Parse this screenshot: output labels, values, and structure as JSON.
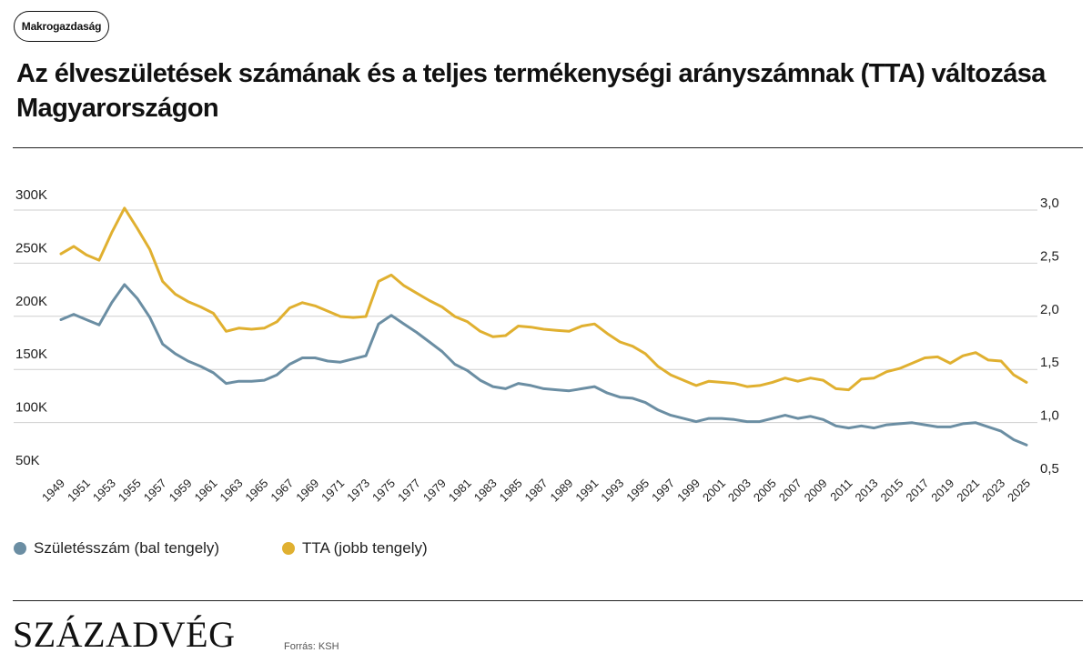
{
  "tag": "Makrogazdaság",
  "title": "Az élveszületések számának és a teljes termékenységi arányszámnak (TTA) változása Magyarországon",
  "brand": "SZÁZADVÉG",
  "source": "Forrás: KSH",
  "colors": {
    "births": "#6b8ea3",
    "tfr": "#e0b030",
    "grid": "#cfcfcf",
    "text": "#222222"
  },
  "chart_data": {
    "type": "line",
    "grid": true,
    "legend_position": "bottom-left",
    "left_axis": {
      "ylim": [
        50000,
        300000
      ],
      "ticks": [
        50000,
        100000,
        150000,
        200000,
        250000,
        300000
      ],
      "tick_labels": [
        "50K",
        "100K",
        "150K",
        "200K",
        "250K",
        "300K"
      ]
    },
    "right_axis": {
      "ylim": [
        0.5,
        3.0
      ],
      "ticks": [
        0.5,
        1.0,
        1.5,
        2.0,
        2.5,
        3.0
      ],
      "tick_labels": [
        "0,5",
        "1,0",
        "1,5",
        "2,0",
        "2,5",
        "3,0"
      ]
    },
    "x_tick_labels": [
      "1949",
      "1951",
      "1953",
      "1955",
      "1957",
      "1959",
      "1961",
      "1963",
      "1965",
      "1967",
      "1969",
      "1971",
      "1973",
      "1975",
      "1977",
      "1979",
      "1981",
      "1983",
      "1985",
      "1987",
      "1989",
      "1991",
      "1993",
      "1995",
      "1997",
      "1999",
      "2001",
      "2003",
      "2005",
      "2007",
      "2009",
      "2011",
      "2013",
      "2015",
      "2017",
      "2019",
      "2021",
      "2023",
      "2025"
    ],
    "x": [
      1949,
      1950,
      1951,
      1952,
      1953,
      1954,
      1955,
      1956,
      1957,
      1958,
      1959,
      1960,
      1961,
      1962,
      1963,
      1964,
      1965,
      1966,
      1967,
      1968,
      1969,
      1970,
      1971,
      1972,
      1973,
      1974,
      1975,
      1976,
      1977,
      1978,
      1979,
      1980,
      1981,
      1982,
      1983,
      1984,
      1985,
      1986,
      1987,
      1988,
      1989,
      1990,
      1991,
      1992,
      1993,
      1994,
      1995,
      1996,
      1997,
      1998,
      1999,
      2000,
      2001,
      2002,
      2003,
      2004,
      2005,
      2006,
      2007,
      2008,
      2009,
      2010,
      2011,
      2012,
      2013,
      2014,
      2015,
      2016,
      2017,
      2018,
      2019,
      2020,
      2021,
      2022,
      2023,
      2024,
      2025
    ],
    "series": [
      {
        "name": "Születésszám (bal tengely)",
        "axis": "left",
        "values": [
          190000,
          195000,
          190000,
          185000,
          206000,
          223000,
          210000,
          192000,
          167000,
          158000,
          151000,
          146000,
          140000,
          130000,
          132000,
          132000,
          133000,
          138000,
          148000,
          154000,
          154000,
          151000,
          150000,
          153000,
          156000,
          186000,
          194000,
          186000,
          178000,
          169000,
          160000,
          148000,
          142000,
          133000,
          127000,
          125000,
          130000,
          128000,
          125000,
          124000,
          123000,
          125000,
          127000,
          121000,
          117000,
          116000,
          112000,
          105000,
          100000,
          97000,
          94000,
          97000,
          97000,
          96000,
          94000,
          94000,
          97000,
          100000,
          97000,
          99000,
          96000,
          90000,
          88000,
          90000,
          88000,
          91000,
          92000,
          93000,
          91000,
          89000,
          89000,
          92000,
          93000,
          89000,
          85000,
          77000,
          72000
        ]
      },
      {
        "name": "TTA (jobb tengely)",
        "axis": "right",
        "values": [
          2.52,
          2.59,
          2.51,
          2.46,
          2.72,
          2.95,
          2.76,
          2.56,
          2.26,
          2.14,
          2.07,
          2.02,
          1.96,
          1.79,
          1.82,
          1.81,
          1.82,
          1.88,
          2.01,
          2.06,
          2.03,
          1.98,
          1.93,
          1.92,
          1.93,
          2.26,
          2.32,
          2.22,
          2.15,
          2.08,
          2.02,
          1.93,
          1.88,
          1.79,
          1.74,
          1.75,
          1.84,
          1.83,
          1.81,
          1.8,
          1.79,
          1.84,
          1.86,
          1.77,
          1.69,
          1.65,
          1.58,
          1.46,
          1.38,
          1.33,
          1.28,
          1.32,
          1.31,
          1.3,
          1.27,
          1.28,
          1.31,
          1.35,
          1.32,
          1.35,
          1.33,
          1.25,
          1.24,
          1.34,
          1.35,
          1.41,
          1.44,
          1.49,
          1.54,
          1.55,
          1.49,
          1.56,
          1.59,
          1.52,
          1.51,
          1.38,
          1.31
        ]
      }
    ]
  }
}
